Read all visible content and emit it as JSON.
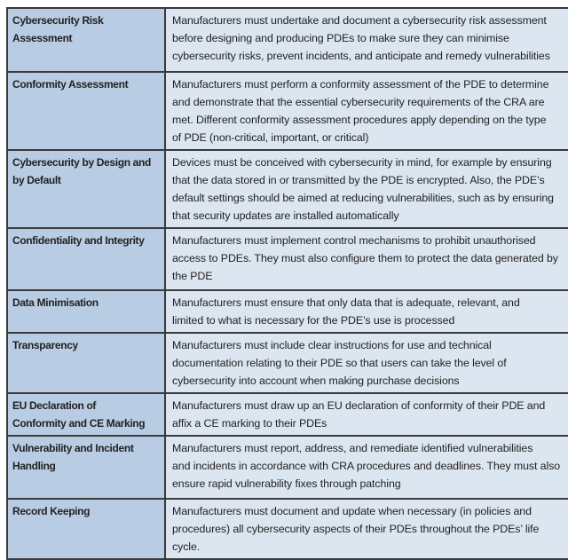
{
  "colors": {
    "border": "#3a3a3a",
    "requirement_column_background": "#b8cce4",
    "description_column_background": "#dce6f1",
    "text": "#222222",
    "page_background": "#ffffff"
  },
  "table": {
    "rows": [
      {
        "requirement": "Cybersecurity Risk\nAssessment",
        "description": "Manufacturers must undertake and document a cybersecurity risk assessment\nbefore designing and producing PDEs to make sure they can minimise\ncybersecurity risks, prevent incidents, and anticipate and remedy vulnerabilities"
      },
      {
        "requirement": "Conformity Assessment",
        "description": "Manufacturers must perform a conformity assessment of the PDE to determine\nand demonstrate that the essential cybersecurity requirements of the CRA are\nmet. Different conformity assessment procedures apply depending on the type\nof PDE (non-critical, important, or critical)"
      },
      {
        "requirement": "Cybersecurity by Design and\nby Default",
        "description": "Devices must be conceived with cybersecurity in mind, for example by ensuring\nthat the data stored in or transmitted by the PDE is encrypted. Also, the PDE’s\ndefault settings should be aimed at reducing vulnerabilities, such as by ensuring\nthat security updates are installed automatically"
      },
      {
        "requirement": "Confidentiality and Integrity",
        "description": "Manufacturers must implement control mechanisms to prohibit unauthorised\naccess to PDEs. They must also configure them to protect the data generated by\nthe PDE"
      },
      {
        "requirement": "Data Minimisation",
        "description": "Manufacturers must ensure that only data that is adequate, relevant, and\nlimited to what is necessary for the PDE’s use is processed"
      },
      {
        "requirement": "Transparency",
        "description": "Manufacturers must include clear instructions for use and technical\ndocumentation relating to their PDE so that users can take the level of\ncybersecurity into account when making purchase decisions"
      },
      {
        "requirement": "EU Declaration of\nConformity and CE Marking",
        "description": "Manufacturers must draw up an EU declaration of conformity of their PDE and\naffix a CE marking to their PDEs"
      },
      {
        "requirement": "Vulnerability and Incident\nHandling",
        "description": "Manufacturers must report, address, and remediate identified vulnerabilities\nand incidents in accordance with CRA procedures and deadlines. They must also\nensure rapid vulnerability fixes through patching"
      },
      {
        "requirement": "Record Keeping",
        "description": "Manufacturers must document and update when necessary (in policies and\nprocedures) all cybersecurity aspects of their PDEs throughout the PDEs’ life\ncycle."
      }
    ]
  }
}
